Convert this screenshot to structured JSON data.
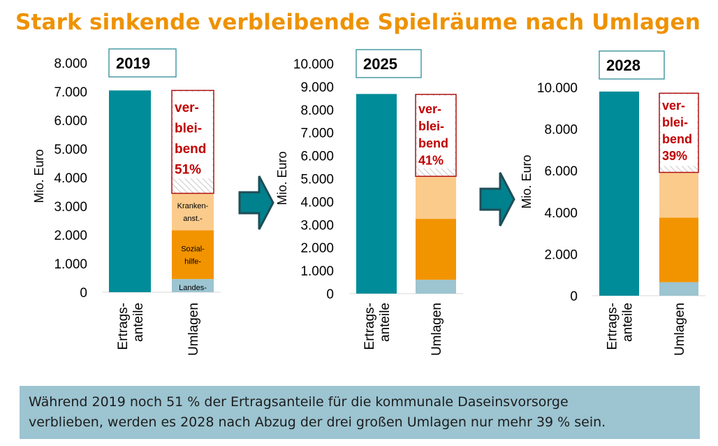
{
  "title": "Stark sinkende verbleibende Spielräume nach Umlagen",
  "caption": {
    "line1": "Während 2019 noch 51 % der Ertragsanteile für die kommunale Daseinsvorsorge",
    "line2": "verblieben, werden es 2028 nach Abzug der drei großen Umlagen nur mehr 39 % sein."
  },
  "colors": {
    "ertragsanteile": "#008c99",
    "landes": "#9cc4d1",
    "sozialhilfe": "#f29400",
    "krankenanstalten": "#fbcb8c",
    "verbleibend_border": "#b01010",
    "verbleibend_text": "#c00000",
    "hatch": "#c8c8c8",
    "arrow": "#00818e",
    "year_box_border": "#2c8c96"
  },
  "chart_data": [
    {
      "type": "bar",
      "stacked": true,
      "year_label": "2019",
      "ylabel": "Mio. Euro",
      "ylim": [
        0,
        8000
      ],
      "yticks": [
        "0",
        "1.000",
        "2.000",
        "3.000",
        "4.000",
        "5.000",
        "6.000",
        "7.000",
        "8.000"
      ],
      "ytick_values": [
        0,
        1000,
        2000,
        3000,
        4000,
        5000,
        6000,
        7000,
        8000
      ],
      "categories": [
        "Ertrags-\nanteile",
        "Umlagen"
      ],
      "category_lines": [
        [
          "Ertrags-",
          "anteile"
        ],
        [
          "Umlagen"
        ]
      ],
      "ertragsanteile": 7040,
      "segments": [
        {
          "name": "Landesumlage",
          "label": "Landes-",
          "value": 460
        },
        {
          "name": "Sozialhilfeumlage",
          "label_lines": [
            "Sozial-",
            "hilfe-"
          ],
          "value": 1700
        },
        {
          "name": "Krankenanstaltenumlage",
          "label_lines": [
            "Kranken-",
            "anst.-"
          ],
          "value": 1290
        },
        {
          "name": "verbleibend",
          "label_lines": [
            "ver-",
            "blei-",
            "bend",
            "51%"
          ],
          "value": 3590
        }
      ]
    },
    {
      "type": "bar",
      "stacked": true,
      "year_label": "2025",
      "ylabel": "Mio. Euro",
      "ylim": [
        0,
        10000
      ],
      "yticks": [
        "0",
        "1.000",
        "2.000",
        "3.000",
        "4.000",
        "5.000",
        "6.000",
        "7.000",
        "8.000",
        "9.000",
        "10.000"
      ],
      "ytick_values": [
        0,
        1000,
        2000,
        3000,
        4000,
        5000,
        6000,
        7000,
        8000,
        9000,
        10000
      ],
      "categories": [
        "Ertrags-\nanteile",
        "Umlagen"
      ],
      "category_lines": [
        [
          "Ertrags-",
          "anteile"
        ],
        [
          "Umlagen"
        ]
      ],
      "ertragsanteile": 8680,
      "segments": [
        {
          "name": "Landesumlage",
          "value": 600
        },
        {
          "name": "Sozialhilfeumlage",
          "value": 2650
        },
        {
          "name": "Krankenanstaltenumlage",
          "value": 1850
        },
        {
          "name": "verbleibend",
          "label_lines": [
            "ver-",
            "blei-",
            "bend",
            "41%"
          ],
          "value": 3560
        }
      ]
    },
    {
      "type": "bar",
      "stacked": true,
      "year_label": "2028",
      "ylabel": "Mio. Euro",
      "ylim": [
        0,
        10000
      ],
      "yticks": [
        "0",
        "2.000",
        "4.000",
        "6.000",
        "8.000",
        "10.000"
      ],
      "ytick_values": [
        0,
        2000,
        4000,
        6000,
        8000,
        10000
      ],
      "categories": [
        "Ertrags-\nanteile",
        "Umlagen"
      ],
      "category_lines": [
        [
          "Ertrags-",
          "anteile"
        ],
        [
          "Umlagen"
        ]
      ],
      "ertragsanteile": 9800,
      "segments": [
        {
          "name": "Landesumlage",
          "value": 650
        },
        {
          "name": "Sozialhilfeumlage",
          "value": 3100
        },
        {
          "name": "Krankenanstaltenumlage",
          "value": 2170
        },
        {
          "name": "verbleibend",
          "label_lines": [
            "ver-",
            "blei-",
            "bend",
            "39%"
          ],
          "value": 3800
        }
      ]
    }
  ]
}
